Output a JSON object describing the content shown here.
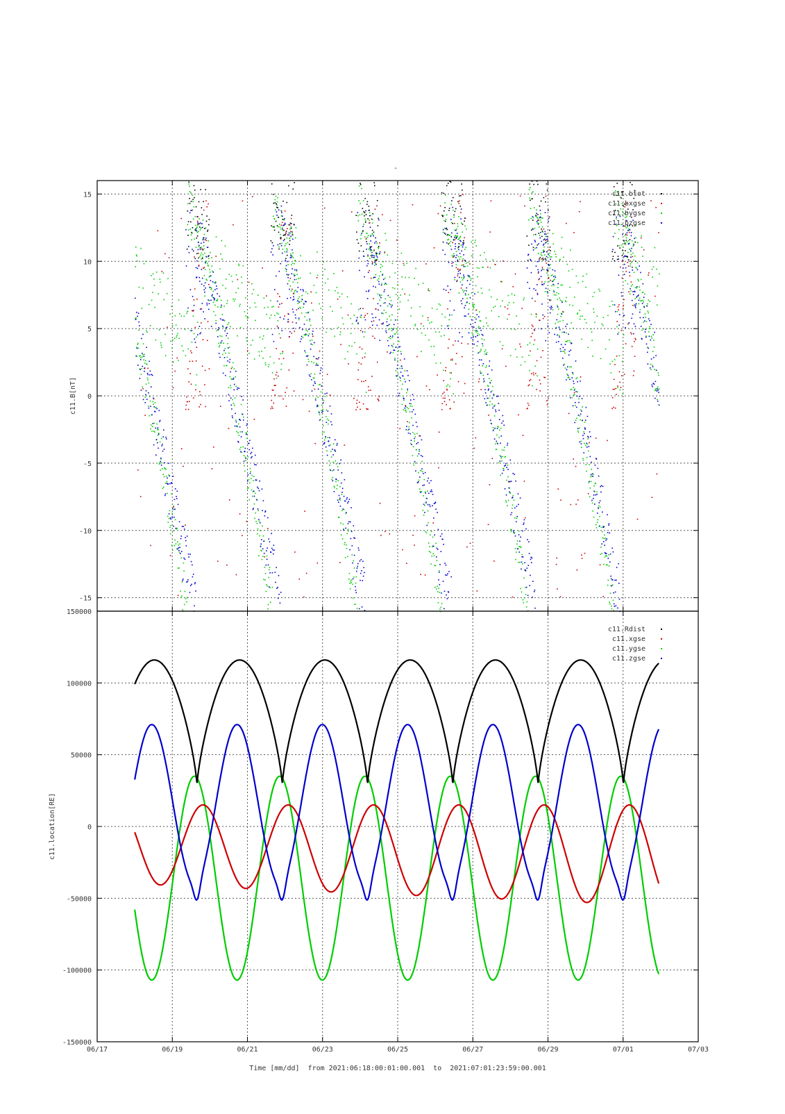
{
  "title": "-",
  "colors": {
    "black": "#000000",
    "red": "#cc0000",
    "green": "#00cc00",
    "blue": "#0000cc",
    "grid": "#555555"
  },
  "xaxis": {
    "ticks": [
      "06/17",
      "06/19",
      "06/21",
      "06/23",
      "06/25",
      "06/27",
      "06/29",
      "07/01",
      "07/03"
    ],
    "label": "Time [mm/dd]  from 2021:06:18:00:01:00.001  to  2021:07:01:23:59:00.001"
  },
  "chart_data": [
    {
      "type": "scatter",
      "ylabel": "c11.B[nT]",
      "ylim": [
        -16,
        16
      ],
      "yticks": [
        "15",
        "10",
        "5",
        "0",
        "-5",
        "-10",
        "-15"
      ],
      "xlim_days": [
        0,
        16
      ],
      "grid": true,
      "legend_placement": "top-right",
      "series": [
        {
          "name": "c11.btot",
          "color": "black"
        },
        {
          "name": "c11.bxgse",
          "color": "red"
        },
        {
          "name": "c11.bygse",
          "color": "green"
        },
        {
          "name": "c11.bzgse",
          "color": "blue"
        }
      ]
    },
    {
      "type": "line",
      "ylabel": "c11.location[RE]",
      "ylim": [
        -150000,
        150000
      ],
      "yticks": [
        "150000",
        "100000",
        "50000",
        "0",
        "-50000",
        "-100000",
        "-150000"
      ],
      "xlim_days": [
        0,
        16
      ],
      "grid": true,
      "legend_placement": "top-right",
      "orbit_period_days": 2.27,
      "series": [
        {
          "name": "c11.Rdist",
          "color": "black",
          "max": 116000,
          "min": 29000
        },
        {
          "name": "c11.xgse",
          "color": "red",
          "max": 15000,
          "min_start": -40000,
          "min_end": -55000
        },
        {
          "name": "c11.ygse",
          "color": "green",
          "max": 35000,
          "min": -107000
        },
        {
          "name": "c11.zgse",
          "color": "blue",
          "max": 71000,
          "min": -40000
        }
      ]
    }
  ]
}
